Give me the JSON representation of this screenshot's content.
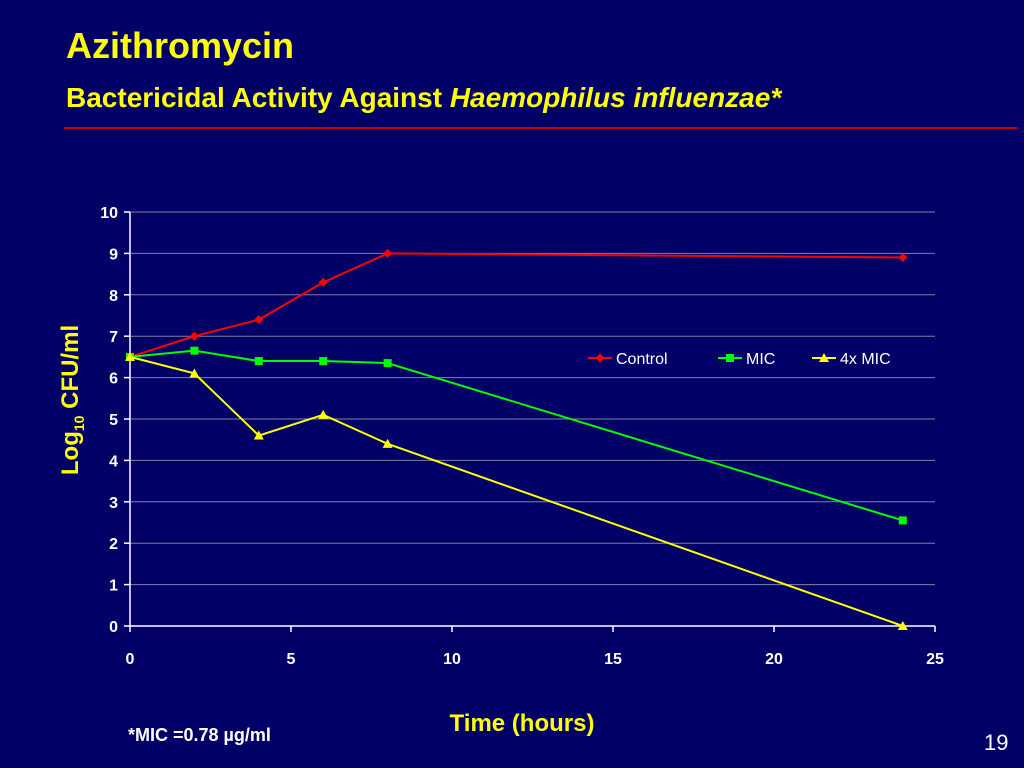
{
  "slide": {
    "title": "Azithromycin",
    "subtitle_plain": "Bactericidal Activity Against ",
    "subtitle_italic": "Haemophilus influenzae*",
    "footnote": "*MIC =0.78 µg/ml",
    "page_number": "19",
    "rule_color": "#cc0000",
    "background_color": "#000066",
    "title_color": "#ffff00"
  },
  "chart_data": {
    "type": "line",
    "xlabel": "Time (hours)",
    "ylabel_main": "Log",
    "ylabel_sub": "10",
    "ylabel_tail": " CFU/ml",
    "xlim": [
      0,
      25
    ],
    "ylim": [
      0,
      10
    ],
    "x_ticks": [
      0,
      5,
      10,
      15,
      20,
      25
    ],
    "y_ticks": [
      0,
      1,
      2,
      3,
      4,
      5,
      6,
      7,
      8,
      9,
      10
    ],
    "grid": "horizontal",
    "legend_position": "right-middle",
    "series": [
      {
        "name": "Control",
        "color": "#ff0000",
        "marker": "diamond",
        "points": [
          [
            0,
            6.5
          ],
          [
            2,
            7.0
          ],
          [
            4,
            7.4
          ],
          [
            6,
            8.3
          ],
          [
            8,
            9.0
          ],
          [
            24,
            8.9
          ]
        ]
      },
      {
        "name": "MIC",
        "color": "#00ff00",
        "marker": "square",
        "points": [
          [
            0,
            6.5
          ],
          [
            2,
            6.65
          ],
          [
            4,
            6.4
          ],
          [
            6,
            6.4
          ],
          [
            8,
            6.35
          ],
          [
            24,
            2.55
          ]
        ]
      },
      {
        "name": "4x MIC",
        "color": "#ffff00",
        "marker": "triangle",
        "points": [
          [
            0,
            6.5
          ],
          [
            2,
            6.1
          ],
          [
            4,
            4.6
          ],
          [
            6,
            5.1
          ],
          [
            8,
            4.4
          ],
          [
            24,
            0.0
          ]
        ]
      }
    ]
  }
}
